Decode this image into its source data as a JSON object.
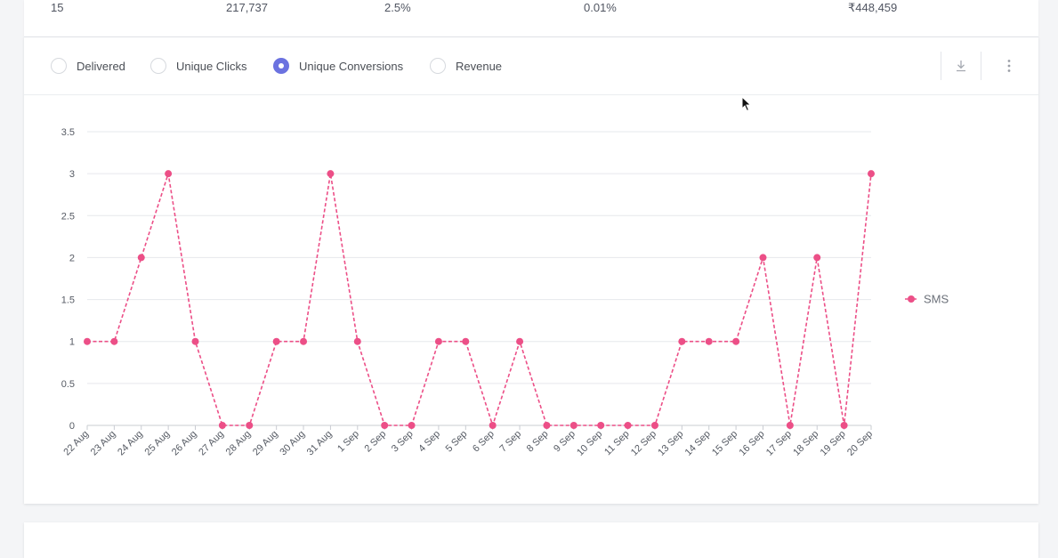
{
  "summary_row": [
    "15",
    "217,737",
    "2.5%",
    "0.01%",
    "₹448,459"
  ],
  "metric_options": [
    {
      "label": "Delivered",
      "selected": false
    },
    {
      "label": "Unique Clicks",
      "selected": false
    },
    {
      "label": "Unique Conversions",
      "selected": true
    },
    {
      "label": "Revenue",
      "selected": false
    }
  ],
  "toolbar": {
    "download_icon": "download-icon",
    "more_icon": "more-vertical-icon"
  },
  "colors": {
    "accent": "#6b72e0",
    "series": "#ec4f87",
    "grid": "#e6e8ec",
    "axis_text": "#555a63"
  },
  "chart_data": {
    "type": "line",
    "x": [
      "22 Aug",
      "23 Aug",
      "24 Aug",
      "25 Aug",
      "26 Aug",
      "27 Aug",
      "28 Aug",
      "29 Aug",
      "30 Aug",
      "31 Aug",
      "1 Sep",
      "2 Sep",
      "3 Sep",
      "4 Sep",
      "5 Sep",
      "6 Sep",
      "7 Sep",
      "8 Sep",
      "9 Sep",
      "10 Sep",
      "11 Sep",
      "12 Sep",
      "13 Sep",
      "14 Sep",
      "15 Sep",
      "16 Sep",
      "17 Sep",
      "18 Sep",
      "19 Sep",
      "20 Sep"
    ],
    "series": [
      {
        "name": "SMS",
        "values": [
          1,
          1,
          2,
          3,
          1,
          0,
          0,
          1,
          1,
          3,
          1,
          0,
          0,
          1,
          1,
          0,
          1,
          0,
          0,
          0,
          0,
          0,
          1,
          1,
          1,
          2,
          0,
          2,
          0,
          3
        ]
      }
    ],
    "yticks": [
      "0",
      "0.5",
      "1",
      "1.5",
      "2",
      "2.5",
      "3",
      "3.5"
    ],
    "ylim": [
      0,
      3.5
    ],
    "line_style": "dashed",
    "grid": true,
    "legend": "right"
  }
}
